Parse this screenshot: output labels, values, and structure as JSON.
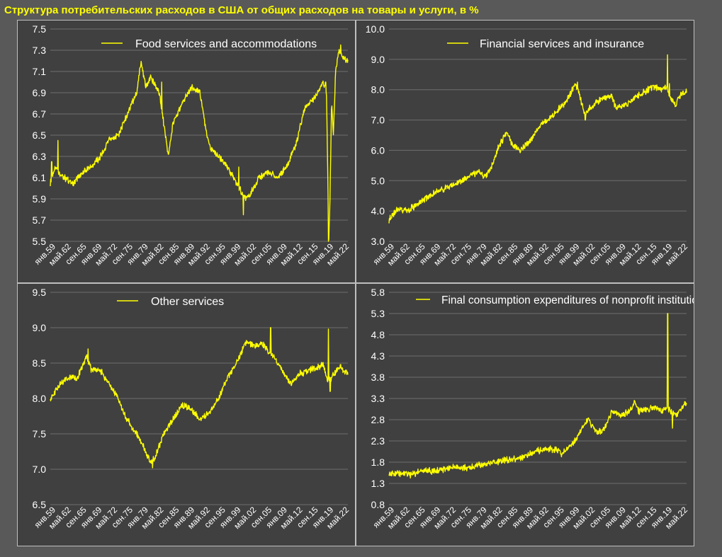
{
  "title": "Структура потребительских расходов в США от общих расходов на товары и услуги, в %",
  "colors": {
    "series": "#ffff00",
    "axis_text": "#ffffff",
    "grid": "#6e6e6e",
    "panel_bg": "#404040",
    "page_bg": "#595959"
  },
  "x_tick_labels": [
    "янв.59",
    "май.62",
    "сен.65",
    "янв.69",
    "май.72",
    "сен.75",
    "янв.79",
    "май.82",
    "сен.85",
    "янв.89",
    "май.92",
    "сен.95",
    "янв.99",
    "май.02",
    "сен.05",
    "янв.09",
    "май.12",
    "сен.15",
    "янв.19",
    "май.22"
  ],
  "chart_data": [
    {
      "type": "line",
      "series": [
        {
          "name": "Food services and accommodations"
        }
      ],
      "ylim": [
        5.5,
        7.5
      ],
      "yticks": [
        "7.5",
        "7.3",
        "7.1",
        "6.9",
        "6.7",
        "6.5",
        "6.3",
        "6.1",
        "5.9",
        "5.7",
        "5.5"
      ],
      "legend_position": "top-right",
      "keypoints": [
        [
          1959,
          6.05
        ],
        [
          1960,
          6.2
        ],
        [
          1962,
          6.1
        ],
        [
          1964,
          6.05
        ],
        [
          1966,
          6.15
        ],
        [
          1968,
          6.2
        ],
        [
          1970,
          6.3
        ],
        [
          1972,
          6.45
        ],
        [
          1974,
          6.5
        ],
        [
          1976,
          6.7
        ],
        [
          1978,
          6.9
        ],
        [
          1979,
          7.2
        ],
        [
          1980,
          6.95
        ],
        [
          1981,
          7.05
        ],
        [
          1983,
          6.9
        ],
        [
          1984,
          6.6
        ],
        [
          1985,
          6.3
        ],
        [
          1986,
          6.6
        ],
        [
          1988,
          6.8
        ],
        [
          1990,
          6.95
        ],
        [
          1992,
          6.9
        ],
        [
          1993,
          6.6
        ],
        [
          1994,
          6.4
        ],
        [
          1996,
          6.3
        ],
        [
          1998,
          6.2
        ],
        [
          2000,
          6.05
        ],
        [
          2002,
          5.9
        ],
        [
          2003,
          5.95
        ],
        [
          2005,
          6.1
        ],
        [
          2007,
          6.15
        ],
        [
          2009,
          6.1
        ],
        [
          2011,
          6.2
        ],
        [
          2013,
          6.4
        ],
        [
          2015,
          6.75
        ],
        [
          2017,
          6.85
        ],
        [
          2018,
          6.9
        ],
        [
          2019,
          7.0
        ],
        [
          2019.8,
          6.9
        ],
        [
          2020.1,
          6.0
        ],
        [
          2020.3,
          5.5
        ],
        [
          2020.6,
          6.0
        ],
        [
          2020.9,
          6.8
        ],
        [
          2021.3,
          6.5
        ],
        [
          2021.8,
          7.1
        ],
        [
          2022.5,
          7.3
        ],
        [
          2023,
          7.25
        ],
        [
          2024,
          7.2
        ]
      ],
      "spikes": [
        [
          1959.3,
          6.25
        ],
        [
          1960.7,
          6.45
        ],
        [
          1983.5,
          7.0
        ],
        [
          2000.5,
          6.2
        ],
        [
          2001.5,
          5.75
        ],
        [
          2019.6,
          7.0
        ],
        [
          2020.2,
          5.5
        ],
        [
          2022.9,
          7.35
        ]
      ]
    },
    {
      "type": "line",
      "series": [
        {
          "name": "Financial services and insurance"
        }
      ],
      "ylim": [
        3.0,
        10.0
      ],
      "yticks": [
        "10.0",
        "9.0",
        "8.0",
        "7.0",
        "6.0",
        "5.0",
        "4.0",
        "3.0"
      ],
      "legend_position": "top-right",
      "keypoints": [
        [
          1959,
          3.7
        ],
        [
          1961,
          4.1
        ],
        [
          1963,
          4.0
        ],
        [
          1966,
          4.3
        ],
        [
          1969,
          4.6
        ],
        [
          1972,
          4.8
        ],
        [
          1975,
          5.0
        ],
        [
          1977,
          5.2
        ],
        [
          1979,
          5.3
        ],
        [
          1980,
          5.1
        ],
        [
          1981,
          5.3
        ],
        [
          1982,
          5.6
        ],
        [
          1983,
          6.1
        ],
        [
          1985,
          6.6
        ],
        [
          1986,
          6.2
        ],
        [
          1988,
          6.0
        ],
        [
          1990,
          6.3
        ],
        [
          1992,
          6.8
        ],
        [
          1994,
          7.0
        ],
        [
          1996,
          7.3
        ],
        [
          1998,
          7.6
        ],
        [
          2000,
          8.2
        ],
        [
          2001,
          7.8
        ],
        [
          2002,
          7.2
        ],
        [
          2004,
          7.5
        ],
        [
          2006,
          7.7
        ],
        [
          2008,
          7.8
        ],
        [
          2009,
          7.4
        ],
        [
          2011,
          7.5
        ],
        [
          2013,
          7.7
        ],
        [
          2015,
          7.9
        ],
        [
          2017,
          8.1
        ],
        [
          2019,
          8.0
        ],
        [
          2020,
          8.1
        ],
        [
          2021,
          7.7
        ],
        [
          2022,
          7.5
        ],
        [
          2023,
          7.8
        ],
        [
          2024,
          7.9
        ]
      ],
      "spikes": [
        [
          2000.5,
          8.25
        ],
        [
          2002.2,
          7.0
        ],
        [
          2020.3,
          9.15
        ],
        [
          2020.7,
          8.2
        ]
      ]
    },
    {
      "type": "line",
      "series": [
        {
          "name": "Other services"
        }
      ],
      "ylim": [
        6.5,
        9.5
      ],
      "yticks": [
        "9.5",
        "9.0",
        "8.5",
        "8.0",
        "7.5",
        "7.0",
        "6.5"
      ],
      "legend_position": "top-center",
      "keypoints": [
        [
          1959,
          8.0
        ],
        [
          1961,
          8.2
        ],
        [
          1963,
          8.3
        ],
        [
          1965,
          8.3
        ],
        [
          1967,
          8.6
        ],
        [
          1968,
          8.4
        ],
        [
          1970,
          8.4
        ],
        [
          1972,
          8.2
        ],
        [
          1974,
          8.0
        ],
        [
          1975,
          7.8
        ],
        [
          1977,
          7.6
        ],
        [
          1979,
          7.4
        ],
        [
          1981,
          7.1
        ],
        [
          1982,
          7.15
        ],
        [
          1984,
          7.5
        ],
        [
          1986,
          7.7
        ],
        [
          1988,
          7.9
        ],
        [
          1990,
          7.85
        ],
        [
          1992,
          7.7
        ],
        [
          1994,
          7.8
        ],
        [
          1996,
          8.0
        ],
        [
          1998,
          8.3
        ],
        [
          2000,
          8.5
        ],
        [
          2002,
          8.8
        ],
        [
          2004,
          8.75
        ],
        [
          2006,
          8.75
        ],
        [
          2008,
          8.6
        ],
        [
          2009,
          8.5
        ],
        [
          2010,
          8.4
        ],
        [
          2012,
          8.2
        ],
        [
          2014,
          8.35
        ],
        [
          2016,
          8.4
        ],
        [
          2018,
          8.45
        ],
        [
          2019,
          8.5
        ],
        [
          2020,
          8.25
        ],
        [
          2021,
          8.3
        ],
        [
          2022,
          8.4
        ],
        [
          2023,
          8.45
        ],
        [
          2024,
          8.35
        ]
      ],
      "spikes": [
        [
          1967.3,
          8.7
        ],
        [
          1981.5,
          7.02
        ],
        [
          2007.5,
          9.0
        ],
        [
          2020.2,
          8.98
        ],
        [
          2020.6,
          8.1
        ]
      ]
    },
    {
      "type": "line",
      "series": [
        {
          "name": "Final consumption expenditures of nonprofit institutions serving households"
        }
      ],
      "ylim": [
        0.8,
        5.8
      ],
      "yticks": [
        "5.8",
        "5.3",
        "4.8",
        "4.3",
        "3.8",
        "3.3",
        "2.8",
        "2.3",
        "1.8",
        "1.3",
        "0.8"
      ],
      "legend_position": "top-center",
      "keypoints": [
        [
          1959,
          1.5
        ],
        [
          1962,
          1.55
        ],
        [
          1964,
          1.5
        ],
        [
          1966,
          1.6
        ],
        [
          1968,
          1.6
        ],
        [
          1970,
          1.6
        ],
        [
          1972,
          1.65
        ],
        [
          1974,
          1.7
        ],
        [
          1976,
          1.65
        ],
        [
          1978,
          1.7
        ],
        [
          1980,
          1.75
        ],
        [
          1982,
          1.8
        ],
        [
          1985,
          1.85
        ],
        [
          1988,
          1.9
        ],
        [
          1990,
          2.0
        ],
        [
          1993,
          2.1
        ],
        [
          1996,
          2.1
        ],
        [
          1997,
          2.0
        ],
        [
          1998,
          2.1
        ],
        [
          2000,
          2.3
        ],
        [
          2001,
          2.5
        ],
        [
          2002,
          2.7
        ],
        [
          2003,
          2.8
        ],
        [
          2004,
          2.6
        ],
        [
          2005,
          2.5
        ],
        [
          2006,
          2.55
        ],
        [
          2007,
          2.7
        ],
        [
          2008,
          3.0
        ],
        [
          2010,
          2.9
        ],
        [
          2012,
          3.0
        ],
        [
          2013,
          3.2
        ],
        [
          2014,
          3.0
        ],
        [
          2016,
          3.05
        ],
        [
          2018,
          3.1
        ],
        [
          2019,
          3.0
        ],
        [
          2020,
          3.1
        ],
        [
          2021,
          3.0
        ],
        [
          2022,
          2.9
        ],
        [
          2023,
          3.0
        ],
        [
          2024,
          3.15
        ]
      ],
      "spikes": [
        [
          2020.35,
          5.3
        ],
        [
          2021.4,
          2.6
        ]
      ]
    }
  ]
}
